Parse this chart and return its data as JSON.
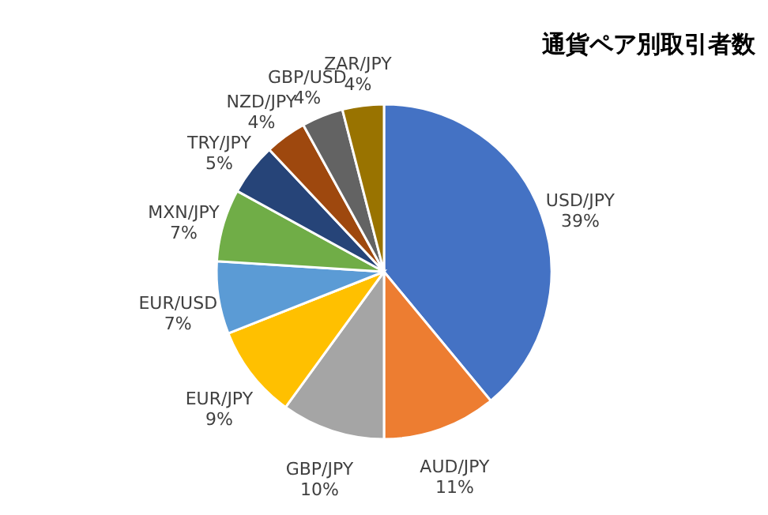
{
  "chart_data": {
    "type": "pie",
    "title": "通貨ペア別取引者数",
    "categories": [
      "USD/JPY",
      "AUD/JPY",
      "GBP/JPY",
      "EUR/JPY",
      "EUR/USD",
      "MXN/JPY",
      "TRY/JPY",
      "NZD/JPY",
      "GBP/USD",
      "ZAR/JPY"
    ],
    "values": [
      39,
      11,
      10,
      9,
      7,
      7,
      5,
      4,
      4,
      4
    ],
    "value_labels": [
      "39%",
      "11%",
      "10%",
      "9%",
      "7%",
      "7%",
      "5%",
      "4%",
      "4%",
      "4%"
    ],
    "colors": [
      "#4472c4",
      "#ed7d31",
      "#a5a5a5",
      "#ffc000",
      "#5b9bd5",
      "#70ad47",
      "#264478",
      "#9e480e",
      "#636363",
      "#997300"
    ]
  }
}
